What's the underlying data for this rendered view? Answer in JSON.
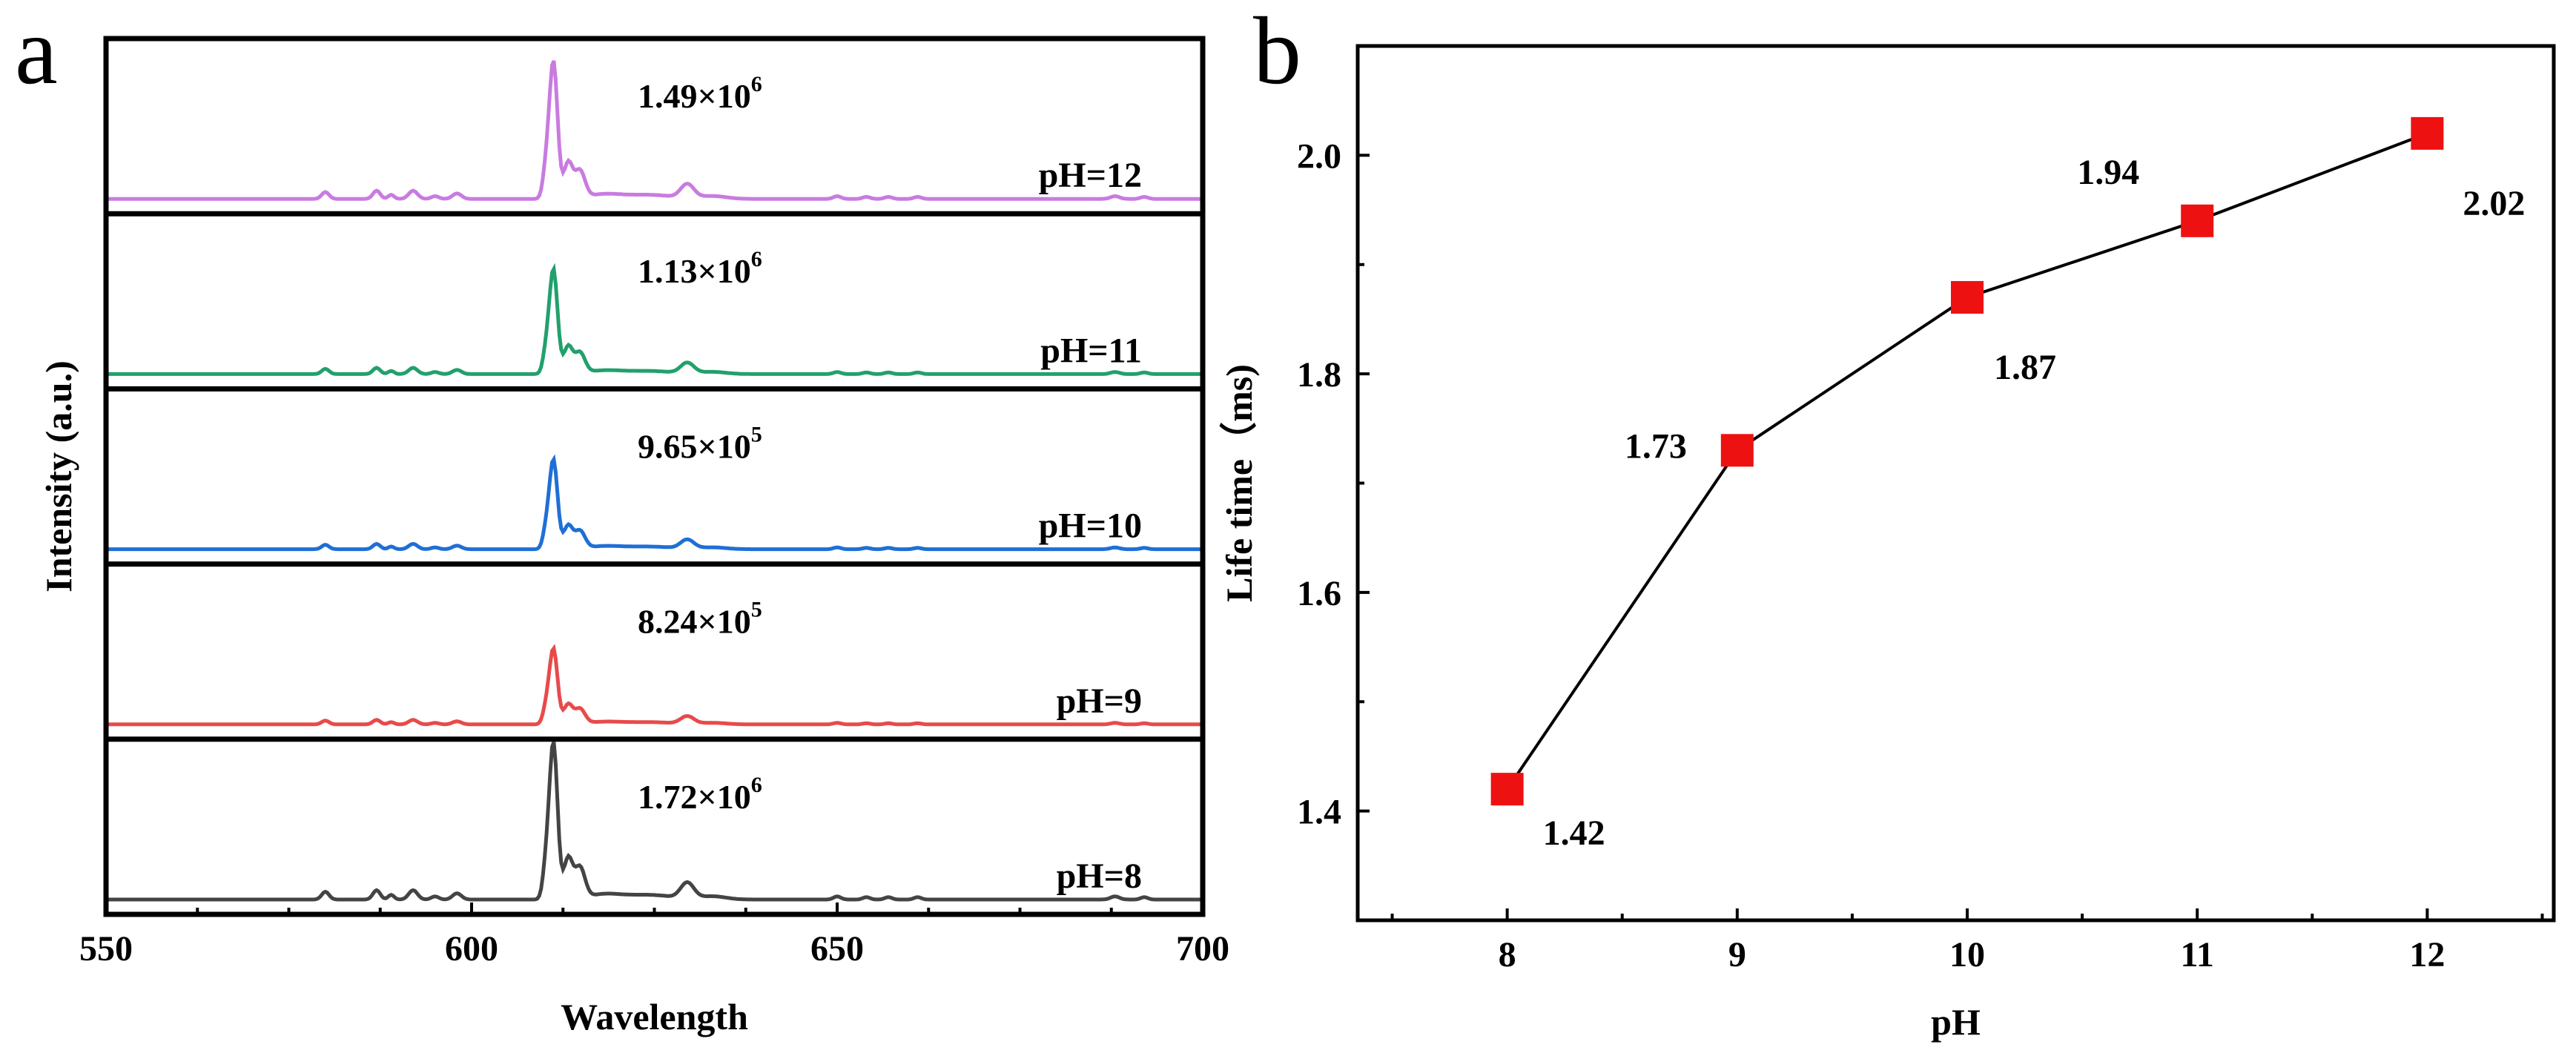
{
  "chart_data": [
    {
      "panel": "a",
      "type": "line",
      "title": "",
      "xlabel": "Wavelength",
      "ylabel": "Intensity (a.u.)",
      "xlim": [
        550,
        700
      ],
      "xticks": [
        "550",
        "600",
        "650",
        "700"
      ],
      "peak_wavelength": 611,
      "series": [
        {
          "name": "pH=12",
          "color": "#c97be0",
          "peak_intensity": "1.49×10",
          "exponent": "6",
          "relative_peak": 1.0
        },
        {
          "name": "pH=11",
          "color": "#22a06b",
          "peak_intensity": "1.13×10",
          "exponent": "6",
          "relative_peak": 0.76
        },
        {
          "name": "pH=10",
          "color": "#1f6fd6",
          "peak_intensity": "9.65×10",
          "exponent": "5",
          "relative_peak": 0.65
        },
        {
          "name": "pH=9",
          "color": "#e84a4a",
          "peak_intensity": "8.24×10",
          "exponent": "5",
          "relative_peak": 0.55
        },
        {
          "name": "pH=8",
          "color": "#444444",
          "peak_intensity": "1.72×10",
          "exponent": "6",
          "relative_peak": 1.15
        }
      ]
    },
    {
      "panel": "b",
      "type": "scatter",
      "title": "",
      "xlabel": "pH",
      "ylabel": "Life time（ms)",
      "xlim": [
        7.35,
        12.55
      ],
      "ylim": [
        1.3,
        2.1
      ],
      "xticks": [
        "8",
        "9",
        "10",
        "11",
        "12"
      ],
      "yticks": [
        "1.4",
        "1.6",
        "1.8",
        "2.0"
      ],
      "marker_color": "#ee1111",
      "x": [
        8,
        9,
        10,
        11,
        12
      ],
      "y": [
        1.42,
        1.73,
        1.87,
        1.94,
        2.02
      ],
      "labels": [
        "1.42",
        "1.73",
        "1.87",
        "1.94",
        "2.02"
      ]
    }
  ]
}
